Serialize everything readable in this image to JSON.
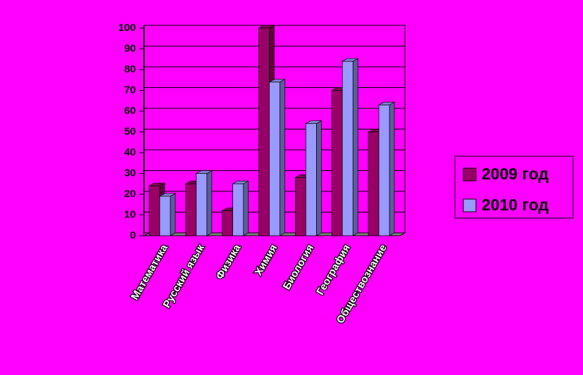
{
  "chart_data": {
    "type": "bar",
    "categories": [
      "Математика",
      "Русский язык",
      "Физика",
      "Химия",
      "Биология",
      "География",
      "Обществознание"
    ],
    "series": [
      {
        "name": "2009 год",
        "color": "#990066",
        "values": [
          24,
          25,
          12,
          100,
          28,
          70,
          50
        ]
      },
      {
        "name": "2010 год",
        "color": "#9999ff",
        "values": [
          19,
          30,
          25,
          74,
          54,
          84,
          63
        ]
      }
    ],
    "ylim": [
      0,
      100
    ],
    "yticks": [
      0,
      10,
      20,
      30,
      40,
      50,
      60,
      70,
      80,
      90,
      100
    ],
    "grid": true,
    "legend": "right"
  }
}
